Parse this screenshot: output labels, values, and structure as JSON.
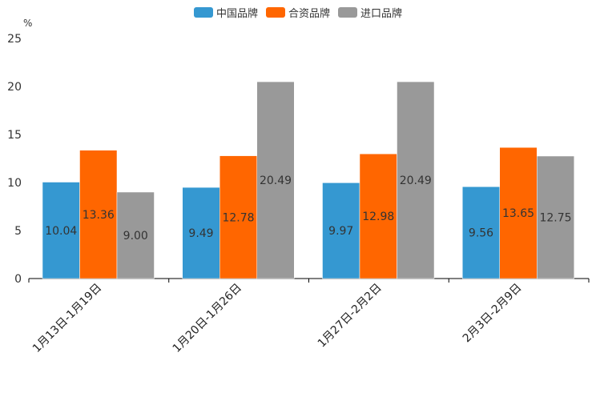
{
  "chart_data": {
    "type": "bar",
    "unit_label": "%",
    "categories": [
      "1月13日-1月19日",
      "1月20日-1月26日",
      "1月27日-2月2日",
      "2月3日-2月9日"
    ],
    "series": [
      {
        "name": "中国品牌",
        "color": "#3598d1",
        "values": [
          10.04,
          9.49,
          9.97,
          9.56
        ],
        "labels": [
          "10.04",
          "9.49",
          "9.97",
          "9.56"
        ]
      },
      {
        "name": "合资品牌",
        "color": "#ff6600",
        "values": [
          13.36,
          12.78,
          12.98,
          13.65
        ],
        "labels": [
          "13.36",
          "12.78",
          "12.98",
          "13.65"
        ]
      },
      {
        "name": "进口品牌",
        "color": "#999999",
        "values": [
          9.0,
          20.49,
          20.49,
          12.75
        ],
        "labels": [
          "9.00",
          "20.49",
          "20.49",
          "12.75"
        ]
      }
    ],
    "yticks": [
      "0",
      "5",
      "10",
      "15",
      "20",
      "25"
    ],
    "ylim": [
      0,
      25
    ],
    "legend_position": "top-center"
  }
}
